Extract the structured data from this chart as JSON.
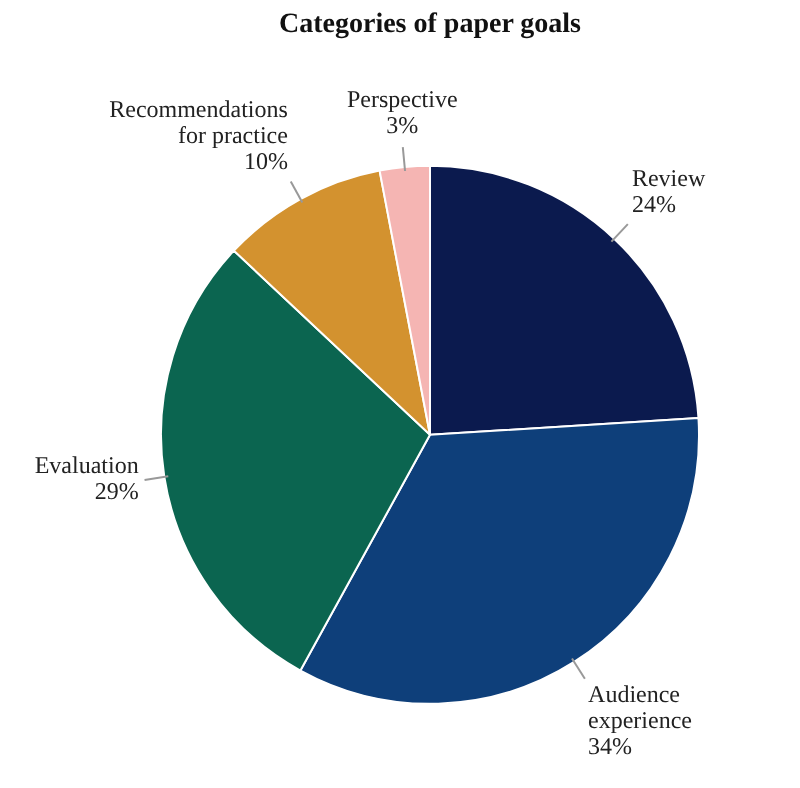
{
  "chart_data": {
    "type": "pie",
    "title": "Categories of paper goals",
    "categories": [
      "Review",
      "Audience experience",
      "Evaluation",
      "Recommendations for practice",
      "Perspective"
    ],
    "values": [
      24,
      34,
      29,
      10,
      3
    ],
    "value_labels": [
      "24%",
      "34%",
      "29%",
      "10%",
      "3%"
    ],
    "colors": [
      "#0b1a4e",
      "#0e3f7a",
      "#0b6550",
      "#d3922f",
      "#f5b5b3"
    ],
    "legend": false
  }
}
